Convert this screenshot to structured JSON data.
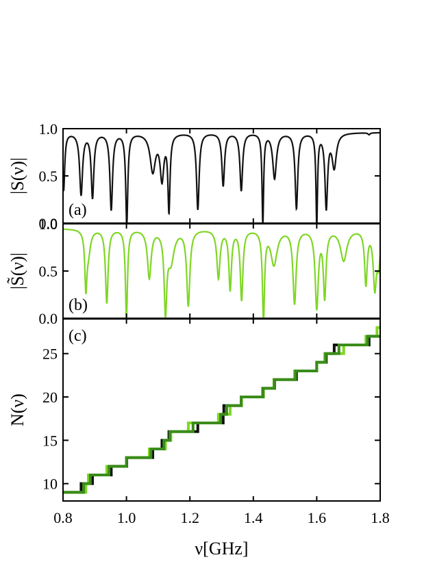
{
  "chart_data": [
    {
      "type": "line",
      "panel_label": "(a)",
      "ylabel": "|S(ν)|",
      "xlim": [
        0.8,
        1.8
      ],
      "ylim": [
        0.0,
        1.0
      ],
      "y_ticks": [
        "0.0",
        "0.5",
        "1.0"
      ],
      "color": "#111111",
      "baseline": 0.96,
      "dips": [
        [
          0.802,
          0.35,
          0.004
        ],
        [
          0.857,
          0.31,
          0.0055
        ],
        [
          0.893,
          0.28,
          0.005
        ],
        [
          0.952,
          0.15,
          0.005
        ],
        [
          1.001,
          0.0,
          0.004
        ],
        [
          1.083,
          0.56,
          0.01
        ],
        [
          1.112,
          0.49,
          0.007
        ],
        [
          1.134,
          0.16,
          0.004
        ],
        [
          1.225,
          0.15,
          0.005
        ],
        [
          1.305,
          0.4,
          0.005
        ],
        [
          1.362,
          0.35,
          0.005
        ],
        [
          1.43,
          0.0,
          0.003
        ],
        [
          1.467,
          0.48,
          0.007
        ],
        [
          1.536,
          0.16,
          0.005
        ],
        [
          1.6,
          0.0,
          0.003
        ],
        [
          1.63,
          0.18,
          0.005
        ],
        [
          1.655,
          0.6,
          0.008
        ],
        [
          1.765,
          0.94,
          0.004
        ]
      ]
    },
    {
      "type": "line",
      "panel_label": "(b)",
      "ylabel": "|S̃(ν)|",
      "xlim": [
        0.8,
        1.8
      ],
      "ylim": [
        0.0,
        1.0
      ],
      "y_ticks": [
        "0.0",
        "0.5",
        "1.0"
      ],
      "color": "#7fd626",
      "baseline": 0.95,
      "dips": [
        [
          0.872,
          0.38,
          0.004
        ],
        [
          0.88,
          0.72,
          0.008
        ],
        [
          0.938,
          0.17,
          0.005
        ],
        [
          1.0,
          0.01,
          0.004
        ],
        [
          1.072,
          0.44,
          0.007
        ],
        [
          1.123,
          0.13,
          0.005
        ],
        [
          1.14,
          0.62,
          0.012
        ],
        [
          1.195,
          0.15,
          0.006
        ],
        [
          1.29,
          0.44,
          0.006
        ],
        [
          1.327,
          0.32,
          0.005
        ],
        [
          1.363,
          0.21,
          0.005
        ],
        [
          1.432,
          0.0,
          0.004
        ],
        [
          1.465,
          0.58,
          0.012
        ],
        [
          1.53,
          0.17,
          0.006
        ],
        [
          1.6,
          0.13,
          0.006
        ],
        [
          1.625,
          0.25,
          0.005
        ],
        [
          1.685,
          0.62,
          0.012
        ],
        [
          1.755,
          0.38,
          0.005
        ],
        [
          1.783,
          0.36,
          0.006
        ],
        [
          1.795,
          0.62,
          0.006
        ]
      ]
    },
    {
      "type": "line",
      "panel_label": "(c)",
      "ylabel": "N(ν)",
      "xlabel": "ν[GHz]",
      "xlim": [
        0.8,
        1.8
      ],
      "ylim": [
        8,
        29
      ],
      "y_ticks": [
        "10",
        "15",
        "20",
        "25"
      ],
      "x_ticks": [
        "0.8",
        "1.0",
        "1.2",
        "1.4",
        "1.6",
        "1.8"
      ],
      "series": [
        {
          "color": "#111111",
          "steps": [
            [
              0.8,
              9
            ],
            [
              0.857,
              10
            ],
            [
              0.893,
              11
            ],
            [
              0.952,
              12
            ],
            [
              1.001,
              13
            ],
            [
              1.083,
              14
            ],
            [
              1.112,
              15
            ],
            [
              1.134,
              16
            ],
            [
              1.225,
              17
            ],
            [
              1.305,
              18
            ],
            [
              1.307,
              19
            ],
            [
              1.362,
              20
            ],
            [
              1.43,
              21
            ],
            [
              1.467,
              22
            ],
            [
              1.536,
              23
            ],
            [
              1.6,
              24
            ],
            [
              1.63,
              25
            ],
            [
              1.655,
              26
            ],
            [
              1.765,
              27
            ],
            [
              1.8,
              27
            ]
          ]
        },
        {
          "color": "#7fd626",
          "steps": [
            [
              0.8,
              9
            ],
            [
              0.872,
              10
            ],
            [
              0.88,
              11
            ],
            [
              0.938,
              12
            ],
            [
              1.0,
              13
            ],
            [
              1.072,
              14
            ],
            [
              1.123,
              15
            ],
            [
              1.14,
              16
            ],
            [
              1.195,
              17
            ],
            [
              1.29,
              18
            ],
            [
              1.327,
              19
            ],
            [
              1.363,
              20
            ],
            [
              1.432,
              21
            ],
            [
              1.465,
              22
            ],
            [
              1.53,
              23
            ],
            [
              1.6,
              24
            ],
            [
              1.625,
              25
            ],
            [
              1.685,
              26
            ],
            [
              1.755,
              27
            ],
            [
              1.79,
              28
            ],
            [
              1.8,
              28
            ]
          ]
        },
        {
          "color": "#3a8c1a",
          "steps": [
            [
              0.8,
              9
            ],
            [
              0.865,
              10
            ],
            [
              0.886,
              11
            ],
            [
              0.945,
              12
            ],
            [
              1.0,
              13
            ],
            [
              1.077,
              14
            ],
            [
              1.118,
              15
            ],
            [
              1.137,
              16
            ],
            [
              1.21,
              17
            ],
            [
              1.297,
              18
            ],
            [
              1.316,
              19
            ],
            [
              1.362,
              20
            ],
            [
              1.431,
              21
            ],
            [
              1.466,
              22
            ],
            [
              1.533,
              23
            ],
            [
              1.6,
              24
            ],
            [
              1.628,
              25
            ],
            [
              1.67,
              26
            ],
            [
              1.76,
              27
            ],
            [
              1.8,
              27
            ]
          ]
        }
      ]
    }
  ]
}
